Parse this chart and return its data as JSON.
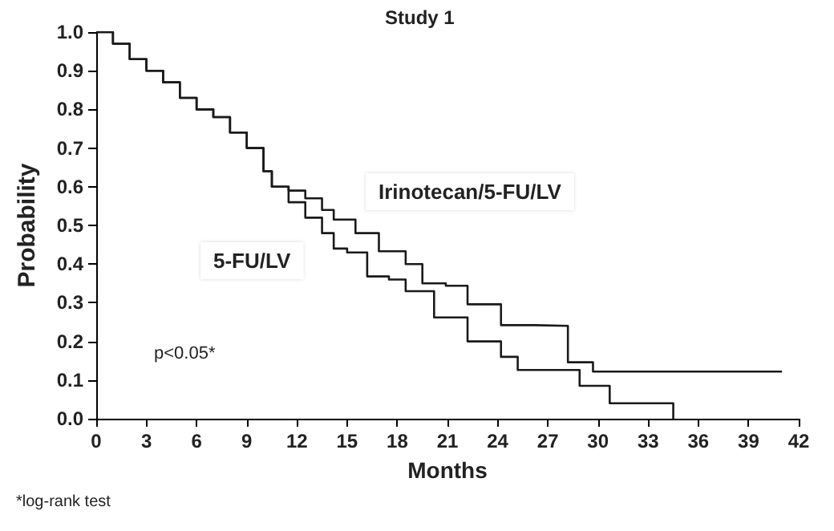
{
  "chart_data": {
    "type": "step",
    "title": "Study 1",
    "xlabel": "Months",
    "ylabel": "Probability",
    "xlim": [
      0,
      42
    ],
    "xticks": [
      0,
      3,
      6,
      9,
      12,
      15,
      18,
      21,
      24,
      27,
      30,
      33,
      36,
      39,
      42
    ],
    "ylim": [
      0,
      1
    ],
    "yticks": [
      {
        "value": 0,
        "label": "0.0"
      },
      {
        "value": 0.1,
        "label": "0.1"
      },
      {
        "value": 0.2,
        "label": "0.2"
      },
      {
        "value": 0.3,
        "label": "0.3"
      },
      {
        "value": 0.4,
        "label": "0.4"
      },
      {
        "value": 0.5,
        "label": "0.5"
      },
      {
        "value": 0.6,
        "label": "0.6"
      },
      {
        "value": 0.7,
        "label": "0.7"
      },
      {
        "value": 0.8,
        "label": "0.8"
      },
      {
        "value": 0.9,
        "label": "0.9"
      },
      {
        "value": 1,
        "label": "1.0"
      }
    ],
    "grid": false,
    "legend": false,
    "marker": "none",
    "line_style": "solid",
    "series": [
      {
        "name": "Irinotecan/5-FU/LV",
        "color": "#1a1a1a",
        "x": [
          0,
          1,
          2,
          3,
          4,
          5,
          6,
          7,
          8,
          9,
          10,
          10.5,
          11.5,
          12.5,
          13.5,
          14.2,
          15.5,
          16.9,
          18.5,
          19.5,
          20.9,
          22.2,
          24.2,
          26.2,
          28.2,
          29.7,
          41
        ],
        "values": [
          1,
          0.97,
          0.93,
          0.9,
          0.87,
          0.83,
          0.8,
          0.78,
          0.74,
          0.7,
          0.64,
          0.6,
          0.59,
          0.57,
          0.54,
          0.515,
          0.48,
          0.433,
          0.4,
          0.35,
          0.344,
          0.296,
          0.242,
          0.24,
          0.146,
          0.122,
          0.122
        ]
      },
      {
        "name": "5-FU/LV",
        "color": "#1a1a1a",
        "x": [
          0,
          1,
          2,
          3,
          4,
          5,
          6,
          7,
          8,
          9,
          10,
          10.5,
          11.5,
          12.5,
          13.5,
          14.2,
          15,
          16.2,
          17.5,
          18.5,
          20.2,
          22.2,
          24.2,
          25.2,
          28.2,
          28.9,
          30.7,
          34.5,
          34.5
        ],
        "values": [
          1,
          0.97,
          0.93,
          0.9,
          0.87,
          0.83,
          0.8,
          0.78,
          0.74,
          0.7,
          0.64,
          0.6,
          0.56,
          0.52,
          0.48,
          0.44,
          0.43,
          0.368,
          0.36,
          0.33,
          0.262,
          0.2,
          0.16,
          0.126,
          0.126,
          0.085,
          0.04,
          0.04,
          0
        ]
      }
    ],
    "annotations": [
      "p<0.05*",
      "*log-rank test"
    ]
  }
}
